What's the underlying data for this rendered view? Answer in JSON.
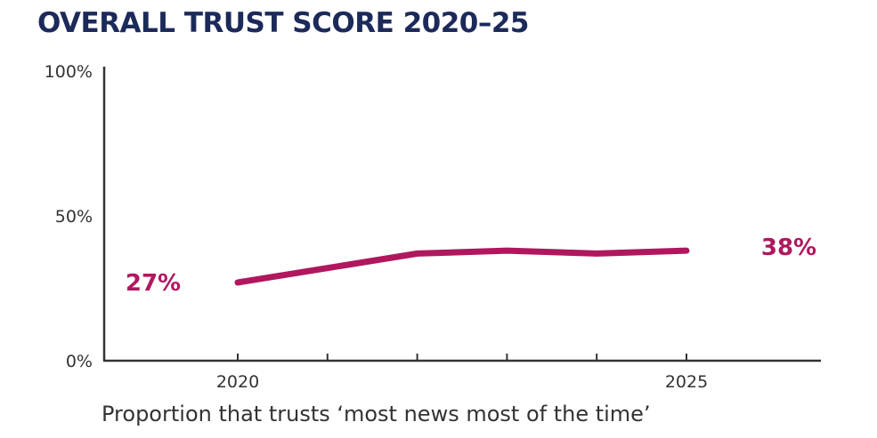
{
  "chart_data": {
    "type": "line",
    "title": "OVERALL TRUST SCORE 2020–25",
    "caption": "Proportion that trusts ‘most news most of the time’",
    "x": [
      2020,
      2021,
      2022,
      2023,
      2024,
      2025
    ],
    "x_tick_labels": [
      "2020",
      "",
      "",
      "",
      "",
      "2025"
    ],
    "y_tick_labels": [
      "100%",
      "50%",
      "0%"
    ],
    "y_ticks": [
      100,
      50,
      0
    ],
    "ylim": [
      0,
      100
    ],
    "series": [
      {
        "values": [
          27,
          32,
          37,
          38,
          37,
          38
        ],
        "start_label": "27%",
        "end_label": "38%"
      }
    ],
    "grid": false,
    "colors": {
      "line": "#b0175e",
      "axis": "#333333",
      "title": "#1c2a5a"
    }
  }
}
